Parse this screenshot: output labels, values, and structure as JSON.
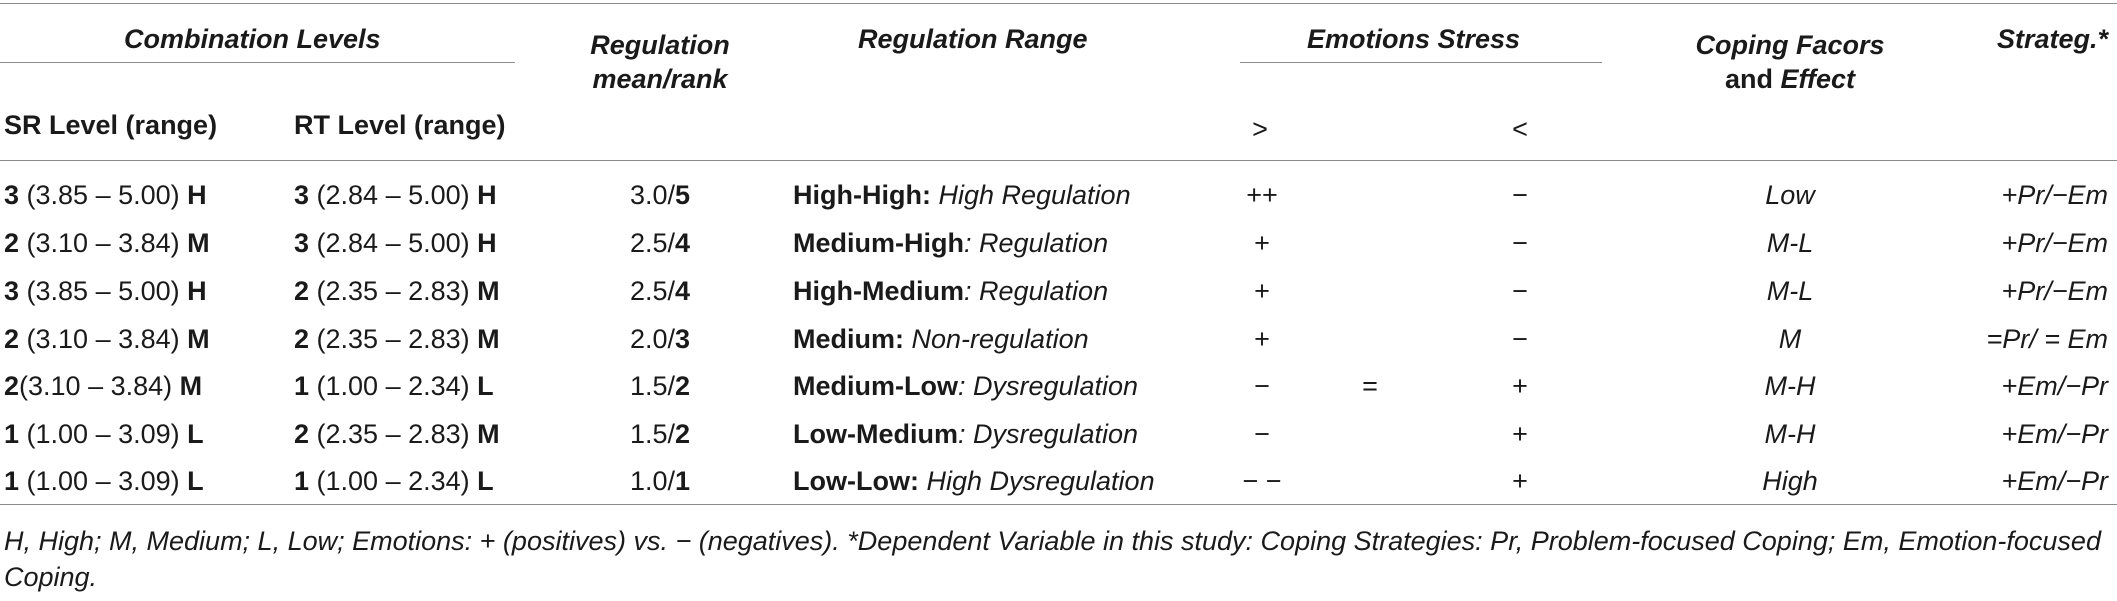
{
  "header": {
    "combination_levels": "Combination Levels",
    "sr_level": "SR Level (range)",
    "rt_level": "RT Level (range)",
    "regulation_mean_1": "Regulation",
    "regulation_mean_2": "mean/rank",
    "regulation_range": "Regulation Range",
    "emotions_stress": "Emotions Stress",
    "gt": ">",
    "lt": "<",
    "coping_1": "Coping Facors",
    "coping_2a": "and ",
    "coping_2b": "Effect",
    "strateg": "Strateg.*"
  },
  "rows": [
    {
      "sr_n": "3",
      "sr_r": " (3.85 – 5.00) ",
      "sr_l": "H",
      "rt_n": "3",
      "rt_r": " (2.84 – 5.00) ",
      "rt_l": "H",
      "mean": "3.0/",
      "rank": "5",
      "range_b": "High-High:",
      "range_i": " High Regulation",
      "emo1": "++",
      "emo2": "",
      "emo3": "−",
      "coping": "Low",
      "strat": "+Pr/−Em"
    },
    {
      "sr_n": "2",
      "sr_r": " (3.10 – 3.84) ",
      "sr_l": "M",
      "rt_n": "3",
      "rt_r": " (2.84 – 5.00) ",
      "rt_l": "H",
      "mean": "2.5/",
      "rank": "4",
      "range_b": "Medium-High",
      "range_i": ": Regulation",
      "emo1": "+",
      "emo2": "",
      "emo3": "−",
      "coping": "M-L",
      "strat": "+Pr/−Em"
    },
    {
      "sr_n": "3",
      "sr_r": " (3.85 – 5.00) ",
      "sr_l": "H",
      "rt_n": "2",
      "rt_r": " (2.35 – 2.83) ",
      "rt_l": "M",
      "mean": "2.5/",
      "rank": "4",
      "range_b": "High-Medium",
      "range_i": ": Regulation",
      "emo1": "+",
      "emo2": "",
      "emo3": "−",
      "coping": "M-L",
      "strat": "+Pr/−Em"
    },
    {
      "sr_n": "2",
      "sr_r": " (3.10 – 3.84) ",
      "sr_l": "M",
      "rt_n": "2",
      "rt_r": " (2.35 – 2.83) ",
      "rt_l": "M",
      "mean": "2.0/",
      "rank": "3",
      "range_b": "Medium:",
      "range_i": " Non-regulation",
      "emo1": "+",
      "emo2": "",
      "emo3": "−",
      "coping": "M",
      "strat": "=Pr/ = Em"
    },
    {
      "sr_n": "2",
      "sr_r": "(3.10 – 3.84) ",
      "sr_l": "M",
      "rt_n": "1",
      "rt_r": " (1.00 – 2.34) ",
      "rt_l": "L",
      "mean": "1.5/",
      "rank": "2",
      "range_b": "Medium-Low",
      "range_i": ": Dysregulation",
      "emo1": "−",
      "emo2": "=",
      "emo3": "+",
      "coping": "M-H",
      "strat": "+Em/−Pr"
    },
    {
      "sr_n": "1",
      "sr_r": " (1.00 – 3.09) ",
      "sr_l": "L",
      "rt_n": "2",
      "rt_r": " (2.35 – 2.83) ",
      "rt_l": "M",
      "mean": "1.5/",
      "rank": "2",
      "range_b": "Low-Medium",
      "range_i": ": Dysregulation",
      "emo1": "−",
      "emo2": "",
      "emo3": "+",
      "coping": "M-H",
      "strat": "+Em/−Pr"
    },
    {
      "sr_n": "1",
      "sr_r": " (1.00 – 3.09) ",
      "sr_l": "L",
      "rt_n": "1",
      "rt_r": " (1.00 – 2.34) ",
      "rt_l": "L",
      "mean": "1.0/",
      "rank": "1",
      "range_b": "Low-Low:",
      "range_i": " High Dysregulation",
      "emo1": "− −",
      "emo2": "",
      "emo3": "+",
      "coping": "High",
      "strat": "+Em/−Pr"
    }
  ],
  "footnote": "H, High; M, Medium; L, Low; Emotions: + (positives) vs. − (negatives). *Dependent Variable in this study: Coping Strategies: Pr, Problem-focused Coping; Em, Emotion-focused Coping."
}
